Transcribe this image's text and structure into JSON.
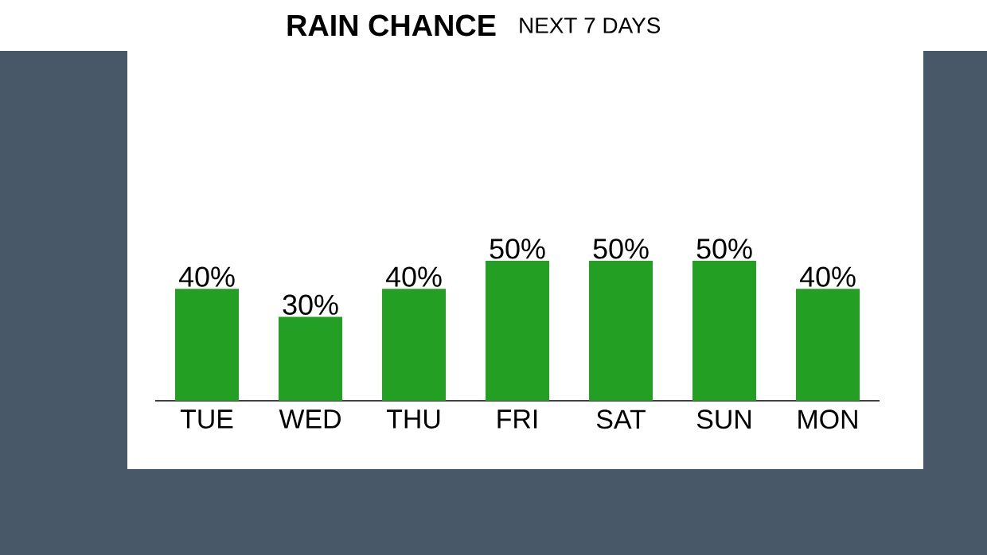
{
  "chart_data": {
    "type": "bar",
    "title": "RAIN CHANCE",
    "subtitle": "NEXT 7 DAYS",
    "categories": [
      "TUE",
      "WED",
      "THU",
      "FRI",
      "SAT",
      "SUN",
      "MON"
    ],
    "values": [
      40,
      30,
      40,
      50,
      50,
      50,
      40
    ],
    "value_labels": [
      "40%",
      "30%",
      "40%",
      "50%",
      "50%",
      "50%",
      "40%"
    ],
    "color": "#23a023"
  }
}
